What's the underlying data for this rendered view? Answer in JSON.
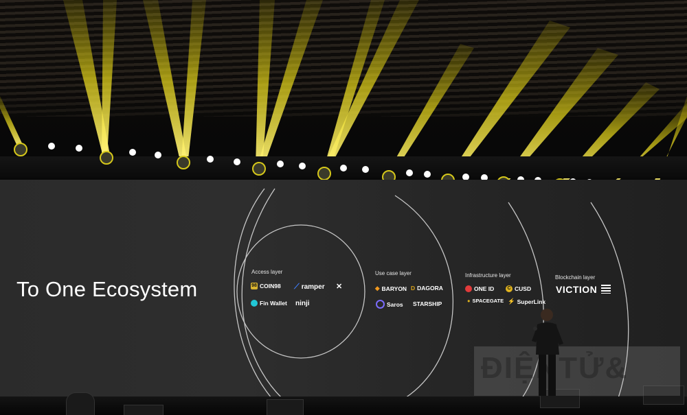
{
  "slide": {
    "title": "To One Ecosystem",
    "layers": [
      {
        "label": "Access layer",
        "items": [
          "COIN98",
          "ramper",
          "Fin Wallet",
          "ninji"
        ]
      },
      {
        "label": "Use case layer",
        "items": [
          "BARYON",
          "DAGORA",
          "Saros",
          "STARSHIP"
        ]
      },
      {
        "label": "Infrastructure layer",
        "items": [
          "ONE ID",
          "CUSD",
          "SPACEGATE",
          "SuperLink"
        ]
      },
      {
        "label": "Blockchain layer",
        "items": [
          "VICTION"
        ]
      }
    ]
  },
  "watermark": {
    "text": "ĐIỆNTỬ&"
  },
  "colors": {
    "beam": "#f2e21c",
    "screen": "#2c2c2c",
    "text": "#ffffff",
    "coin98": "#d9b430",
    "ramper": "#3f7fff",
    "finwallet": "#21c7d6",
    "baryon": "#f29a1f",
    "dagora": "#d9a21a",
    "saros": "#7b6cff",
    "oneid": "#e23b3b",
    "cusd": "#e0b31e",
    "superlink": "#e23b3b"
  }
}
